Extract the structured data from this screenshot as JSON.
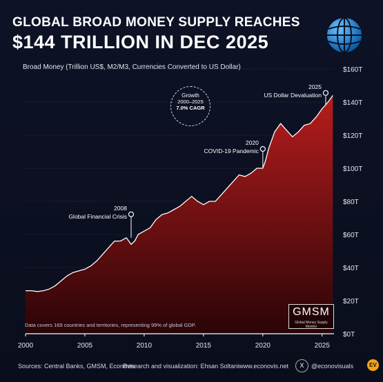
{
  "header": {
    "title_line1": "GLOBAL BROAD MONEY SUPPLY REACHES",
    "title_line2": "$144 TRILLION IN DEC 2025",
    "subtitle": "Broad Money (Trillion US$, M2/M3, Currencies Converted to US Dollar)"
  },
  "logo": {
    "icon": "globe-icon"
  },
  "growth_badge": {
    "line1": "Growth",
    "line2": "2000–2025",
    "line3": "7.0% CAGR"
  },
  "annotations": [
    {
      "year": "2008",
      "text": "Global Financial Crisis",
      "x": 2008.9,
      "y": 58
    },
    {
      "year": "2020",
      "text": "COVID-19 Pandemic",
      "x": 2020.0,
      "y": 100
    },
    {
      "year": "2025",
      "text": "US Dollar Devaluation",
      "x": 2025.3,
      "y": 138
    }
  ],
  "note": "Data covers 169 countries and territories, representing 99% of global GDP.",
  "gmsm": {
    "title": "GMSM",
    "subtitle": "Global Money Supply Monitor"
  },
  "footer": {
    "sources": "Sources: Central Banks, GMSM, Econovis",
    "research": "Research and visualization: Ehsan Soltani",
    "site": "www.econovis.net",
    "handle": "@econovisuals",
    "x_icon": "x-logo-icon",
    "ev_label": "EV"
  },
  "colors": {
    "fill_top": "#b01e1e",
    "fill_bottom": "#3a0608",
    "line": "#ffffff",
    "bg": "#0b0f1f"
  },
  "chart_data": {
    "type": "area",
    "x_range": [
      2000,
      2026
    ],
    "ylim": [
      0,
      160
    ],
    "x_ticks": [
      2000,
      2005,
      2010,
      2015,
      2020,
      2025
    ],
    "x_tick_labels": [
      "2000",
      "2005",
      "2010",
      "2015",
      "2020",
      "2025"
    ],
    "y_ticks": [
      0,
      20,
      40,
      60,
      80,
      100,
      120,
      140,
      160
    ],
    "y_tick_labels": [
      "$0T",
      "$20T",
      "$40T",
      "$60T",
      "$80T",
      "$100T",
      "$120T",
      "$140T",
      "$160T"
    ],
    "grid": "horizontal",
    "series": [
      {
        "x": [
          2000,
          2000.5,
          2001,
          2001.5,
          2002,
          2002.5,
          2003,
          2003.5,
          2004,
          2004.5,
          2005,
          2005.5,
          2006,
          2006.5,
          2007,
          2007.5,
          2008,
          2008.5,
          2008.9,
          2009.2,
          2009.5,
          2010,
          2010.5,
          2011,
          2011.5,
          2012,
          2012.5,
          2013,
          2013.5,
          2014,
          2014.5,
          2015,
          2015.5,
          2016,
          2016.5,
          2017,
          2017.5,
          2018,
          2018.5,
          2019,
          2019.5,
          2020,
          2020.2,
          2020.5,
          2021,
          2021.5,
          2022,
          2022.5,
          2023,
          2023.5,
          2024,
          2024.5,
          2025,
          2025.5,
          2025.9
        ],
        "values": [
          26,
          26,
          25.5,
          26,
          27,
          29,
          32,
          35,
          37,
          38,
          39,
          41,
          44,
          48,
          52,
          56,
          56,
          58,
          54,
          56,
          60,
          62,
          64,
          69,
          72,
          73,
          75,
          77,
          80,
          83,
          80,
          78,
          80,
          80,
          84,
          88,
          92,
          96,
          95,
          97,
          100,
          100,
          104,
          112,
          122,
          127,
          123,
          119,
          122,
          126,
          127,
          131,
          136,
          140,
          144
        ]
      }
    ]
  }
}
